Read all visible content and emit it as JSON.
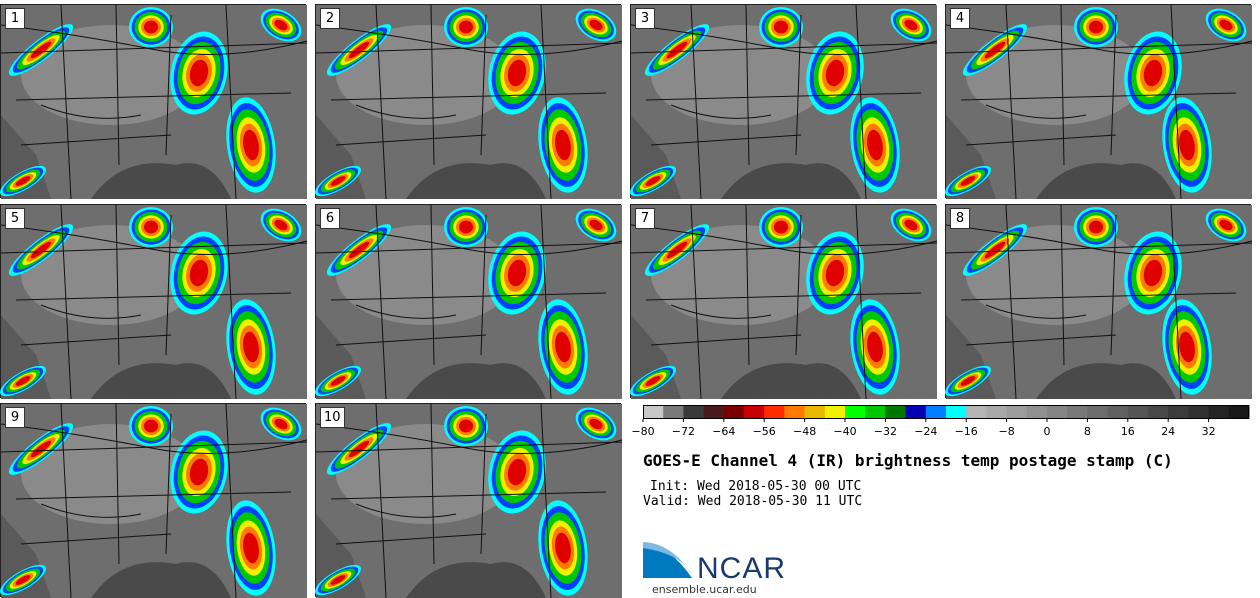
{
  "panels": [
    {
      "label": "1"
    },
    {
      "label": "2"
    },
    {
      "label": "3"
    },
    {
      "label": "4"
    },
    {
      "label": "5"
    },
    {
      "label": "6"
    },
    {
      "label": "7"
    },
    {
      "label": "8"
    },
    {
      "label": "9"
    },
    {
      "label": "10"
    }
  ],
  "colorbar": {
    "colors": [
      "#c8c8c8",
      "#7a7a7a",
      "#3a3a3a",
      "#4a1a1a",
      "#7a0000",
      "#c80000",
      "#ff2a00",
      "#ff7a00",
      "#e8b800",
      "#f0f000",
      "#00ff00",
      "#00c800",
      "#007800",
      "#0000b4",
      "#0080ff",
      "#00ffff",
      "#b4b4b4",
      "#a8a8a8",
      "#9c9c9c",
      "#909090",
      "#848484",
      "#787878",
      "#6c6c6c",
      "#606060",
      "#545454",
      "#484848",
      "#3c3c3c",
      "#303030",
      "#242424",
      "#181818"
    ],
    "ticks": [
      "−80",
      "−72",
      "−64",
      "−56",
      "−48",
      "−40",
      "−32",
      "−24",
      "−16",
      "−8",
      "0",
      "8",
      "16",
      "24",
      "32"
    ]
  },
  "title": "GOES-E Channel 4 (IR) brightness temp postage stamp (C)",
  "init": "Init: Wed 2018-05-30 00 UTC",
  "valid": "Valid: Wed 2018-05-30 11 UTC",
  "logo": {
    "text": "NCAR",
    "color": "#1a3a6e",
    "accent": "#0079c1"
  },
  "url": "ensemble.ucar.edu"
}
